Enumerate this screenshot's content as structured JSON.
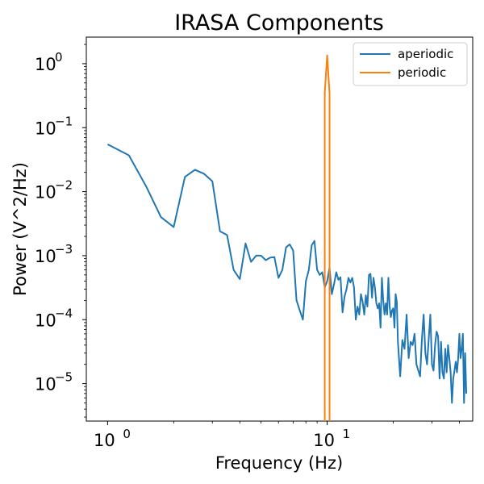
{
  "chart_data": {
    "type": "line",
    "title": "IRASA Components",
    "xlabel": "Frequency (Hz)",
    "ylabel": "Power (V^2/Hz)",
    "xscale": "log",
    "yscale": "log",
    "xlim": [
      0.8,
      46
    ],
    "ylim": [
      2.6e-06,
      2.6
    ],
    "grid": false,
    "legend_position": "top-right",
    "x_ticks": [
      {
        "value": 1,
        "base": "10",
        "exp": "0"
      },
      {
        "value": 10,
        "base": "10",
        "exp": "1"
      }
    ],
    "y_ticks": [
      {
        "value": 1e-05,
        "base": "10",
        "exp": "−5"
      },
      {
        "value": 0.0001,
        "base": "10",
        "exp": "−4"
      },
      {
        "value": 0.001,
        "base": "10",
        "exp": "−3"
      },
      {
        "value": 0.01,
        "base": "10",
        "exp": "−2"
      },
      {
        "value": 0.1,
        "base": "10",
        "exp": "−1"
      },
      {
        "value": 1,
        "base": "10",
        "exp": "0"
      }
    ],
    "series": [
      {
        "name": "aperiodic",
        "color": "#1f77b4",
        "points": [
          [
            1.0,
            0.055
          ],
          [
            1.25,
            0.037
          ],
          [
            1.5,
            0.012
          ],
          [
            1.75,
            0.004
          ],
          [
            2.0,
            0.0028
          ],
          [
            2.25,
            0.017
          ],
          [
            2.5,
            0.022
          ],
          [
            2.75,
            0.019
          ],
          [
            3.0,
            0.0145
          ],
          [
            3.25,
            0.0024
          ],
          [
            3.5,
            0.0021
          ],
          [
            3.75,
            0.0006
          ],
          [
            4.0,
            0.00043
          ],
          [
            4.25,
            0.00155
          ],
          [
            4.5,
            0.0008
          ],
          [
            4.75,
            0.001
          ],
          [
            5.0,
            0.001
          ],
          [
            5.25,
            0.00085
          ],
          [
            5.5,
            0.00093
          ],
          [
            5.75,
            0.00095
          ],
          [
            6.0,
            0.00045
          ],
          [
            6.25,
            0.0006
          ],
          [
            6.5,
            0.00135
          ],
          [
            6.75,
            0.0015
          ],
          [
            7.0,
            0.0012
          ],
          [
            7.25,
            0.0002
          ],
          [
            7.5,
            0.00014
          ],
          [
            7.75,
            0.0001
          ],
          [
            8.0,
            0.0004
          ],
          [
            8.25,
            0.0006
          ],
          [
            8.5,
            0.00145
          ],
          [
            8.75,
            0.0017
          ],
          [
            9.0,
            0.0006
          ],
          [
            9.25,
            0.0005
          ],
          [
            9.5,
            0.00055
          ],
          [
            9.75,
            0.00032
          ],
          [
            10.0,
            0.0004
          ],
          [
            10.25,
            0.00065
          ],
          [
            10.5,
            0.00025
          ],
          [
            10.75,
            0.00036
          ],
          [
            11.0,
            0.00055
          ],
          [
            11.25,
            0.00042
          ],
          [
            11.5,
            0.00046
          ],
          [
            11.75,
            0.00013
          ],
          [
            12.0,
            0.00023
          ],
          [
            12.25,
            0.0003
          ],
          [
            12.5,
            0.00045
          ],
          [
            12.75,
            0.00038
          ],
          [
            13.0,
            0.00045
          ],
          [
            13.25,
            0.00032
          ],
          [
            13.5,
            0.0001
          ],
          [
            13.75,
            0.00016
          ],
          [
            14.0,
            0.00012
          ],
          [
            14.25,
            0.00025
          ],
          [
            14.5,
            0.00019
          ],
          [
            14.75,
            0.00012
          ],
          [
            15.0,
            0.00024
          ],
          [
            15.25,
            0.00016
          ],
          [
            15.5,
            0.0005
          ],
          [
            15.75,
            0.00052
          ],
          [
            16.0,
            0.00022
          ],
          [
            16.25,
            0.00045
          ],
          [
            16.5,
            0.00032
          ],
          [
            16.75,
            0.00018
          ],
          [
            17.0,
            0.00015
          ],
          [
            17.25,
            0.00018
          ],
          [
            17.5,
            7.5e-05
          ],
          [
            17.75,
            0.00045
          ],
          [
            18.0,
            0.0002
          ],
          [
            18.25,
            0.00012
          ],
          [
            18.5,
            0.00018
          ],
          [
            18.75,
            0.00012
          ],
          [
            19.0,
            0.00045
          ],
          [
            19.25,
            0.00016
          ],
          [
            19.5,
            0.00011
          ],
          [
            19.75,
            0.00014
          ],
          [
            20.0,
            0.00015
          ],
          [
            20.25,
            7.5e-05
          ],
          [
            20.5,
            0.00025
          ],
          [
            20.75,
            0.00019
          ],
          [
            21.0,
            4.5e-05
          ],
          [
            21.5,
            1.3e-05
          ],
          [
            22.0,
            4.8e-05
          ],
          [
            22.5,
            3.5e-05
          ],
          [
            23.0,
            0.00012
          ],
          [
            23.5,
            2.5e-05
          ],
          [
            24.0,
            4.5e-05
          ],
          [
            24.5,
            4e-05
          ],
          [
            25.0,
            6e-05
          ],
          [
            25.5,
            2e-05
          ],
          [
            26.0,
            1.6e-05
          ],
          [
            26.5,
            1.3e-05
          ],
          [
            27.0,
            5e-05
          ],
          [
            27.5,
            0.00012
          ],
          [
            28.0,
            3e-05
          ],
          [
            28.5,
            2e-05
          ],
          [
            29.0,
            5e-05
          ],
          [
            29.5,
            0.00012
          ],
          [
            30.0,
            2e-05
          ],
          [
            30.5,
            1.6e-05
          ],
          [
            31.0,
            4e-05
          ],
          [
            31.5,
            6.5e-05
          ],
          [
            32.0,
            5.5e-05
          ],
          [
            32.5,
            1.2e-05
          ],
          [
            33.0,
            4.5e-05
          ],
          [
            33.5,
            1.5e-05
          ],
          [
            34.0,
            1.2e-05
          ],
          [
            34.5,
            3.5e-05
          ],
          [
            35.0,
            1.5e-05
          ],
          [
            35.5,
            4e-05
          ],
          [
            36.0,
            2.5e-05
          ],
          [
            36.5,
            1.5e-05
          ],
          [
            37.0,
            5e-06
          ],
          [
            37.5,
            1.2e-05
          ],
          [
            38.0,
            1.6e-05
          ],
          [
            38.5,
            2.2e-05
          ],
          [
            39.0,
            1.5e-05
          ],
          [
            39.5,
            2.5e-05
          ],
          [
            40.0,
            6e-05
          ],
          [
            40.5,
            2.5e-05
          ],
          [
            41.0,
            3.5e-05
          ],
          [
            41.5,
            6e-05
          ],
          [
            42.0,
            5e-06
          ],
          [
            42.5,
            3e-05
          ],
          [
            43.0,
            7e-06
          ]
        ]
      },
      {
        "name": "periodic",
        "color": "#ff7f0e",
        "points": [
          [
            9.75,
            2e-06
          ],
          [
            9.75,
            0.35
          ],
          [
            10.0,
            1.35
          ],
          [
            10.25,
            0.35
          ],
          [
            10.25,
            2e-06
          ]
        ]
      }
    ]
  }
}
